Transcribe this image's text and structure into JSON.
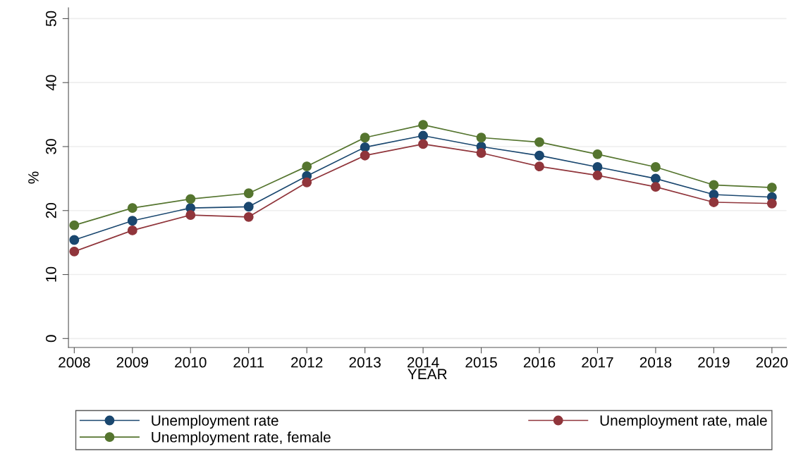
{
  "chart_data": {
    "type": "line",
    "xlabel": "YEAR",
    "ylabel": "%",
    "x": [
      2008,
      2009,
      2010,
      2011,
      2012,
      2013,
      2014,
      2015,
      2016,
      2017,
      2018,
      2019,
      2020
    ],
    "series": [
      {
        "name": "Unemployment rate",
        "color": "#1a476f",
        "values": [
          15.4,
          18.4,
          20.4,
          20.6,
          25.4,
          29.9,
          31.7,
          30.0,
          28.6,
          26.8,
          25.0,
          22.5,
          22.1
        ]
      },
      {
        "name": "Unemployment rate, male",
        "color": "#90353b",
        "values": [
          13.6,
          16.9,
          19.3,
          19.0,
          24.4,
          28.6,
          30.4,
          29.0,
          26.9,
          25.5,
          23.7,
          21.3,
          21.1
        ]
      },
      {
        "name": "Unemployment rate, female",
        "color": "#55752f",
        "values": [
          17.7,
          20.4,
          21.8,
          22.7,
          26.9,
          31.4,
          33.4,
          31.4,
          30.7,
          28.8,
          26.8,
          24.0,
          23.6
        ]
      }
    ],
    "xlim": [
      2007.9,
      2020.25
    ],
    "ylim": [
      -1.4,
      51.7
    ],
    "xticks": [
      2008,
      2009,
      2010,
      2011,
      2012,
      2013,
      2014,
      2015,
      2016,
      2017,
      2018,
      2019,
      2020
    ],
    "yticks": [
      0,
      10,
      20,
      30,
      40,
      50
    ],
    "grid": "y",
    "legend": "bottom",
    "marker": "circle",
    "line_style": "solid"
  }
}
